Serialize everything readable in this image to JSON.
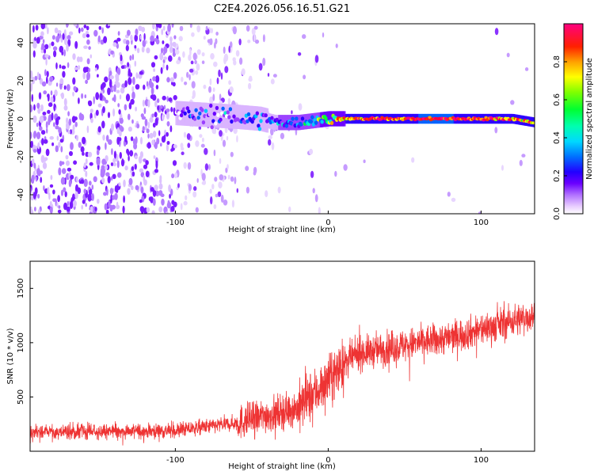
{
  "title": "C2E4.2026.056.16.51.G21",
  "chart_data": [
    {
      "type": "heatmap",
      "name": "spectrogram",
      "xlabel": "Height of straight line (km)",
      "ylabel": "Frequency (Hz)",
      "xlim": [
        -195,
        135
      ],
      "ylim": [
        -50,
        50
      ],
      "xticks": [
        -100,
        0,
        100
      ],
      "xtick_labels": [
        "-100",
        "0",
        "100"
      ],
      "yticks": [
        -40,
        -20,
        0,
        20,
        40
      ],
      "ytick_labels": [
        "-40",
        "-20",
        "0",
        "20",
        "40"
      ],
      "colorbar": {
        "label": "Normalized spectral amplitude",
        "range": [
          0,
          1
        ],
        "ticks": [
          0.0,
          0.2,
          0.4,
          0.6,
          0.8
        ],
        "tick_labels": [
          "0.0",
          "0.2",
          "0.4",
          "0.6",
          "0.8"
        ],
        "colors": [
          "#ffffff",
          "#d9b3ff",
          "#9a3fff",
          "#6a00ff",
          "#2a00ff",
          "#0060ff",
          "#00c8ff",
          "#00ffc8",
          "#00ff3a",
          "#9aff00",
          "#ffff00",
          "#ffa000",
          "#ff3000",
          "#ff0040",
          "#ff0080"
        ]
      },
      "signal_track": {
        "x": [
          -100,
          -80,
          -60,
          -45,
          -35,
          -20,
          -10,
          0,
          10,
          20,
          40,
          60,
          80,
          100,
          120,
          135
        ],
        "freq": [
          3,
          2,
          1,
          0,
          -2,
          -2,
          -1,
          0,
          0,
          0,
          0,
          0,
          0,
          0,
          0,
          -2
        ],
        "amplitude": [
          0.15,
          0.2,
          0.2,
          0.3,
          0.3,
          0.35,
          0.45,
          0.6,
          0.7,
          0.85,
          0.9,
          0.92,
          0.92,
          0.9,
          0.85,
          0.75
        ]
      }
    },
    {
      "type": "line",
      "name": "snr",
      "color": "#ee3333",
      "xlabel": "Height of straight line (km)",
      "ylabel": "SNR (10 * v/v)",
      "xlim": [
        -195,
        135
      ],
      "ylim": [
        0,
        1750
      ],
      "xticks": [
        -100,
        0,
        100
      ],
      "xtick_labels": [
        "-100",
        "0",
        "100"
      ],
      "yticks": [
        500,
        1000,
        1500
      ],
      "ytick_labels": [
        "500",
        "1000",
        "1500"
      ],
      "trend": {
        "x": [
          -195,
          -150,
          -100,
          -60,
          -40,
          -20,
          -10,
          0,
          10,
          20,
          40,
          60,
          80,
          100,
          120,
          135
        ],
        "y": [
          170,
          180,
          190,
          260,
          330,
          400,
          520,
          650,
          800,
          900,
          950,
          1000,
          1050,
          1120,
          1200,
          1250
        ]
      }
    }
  ]
}
